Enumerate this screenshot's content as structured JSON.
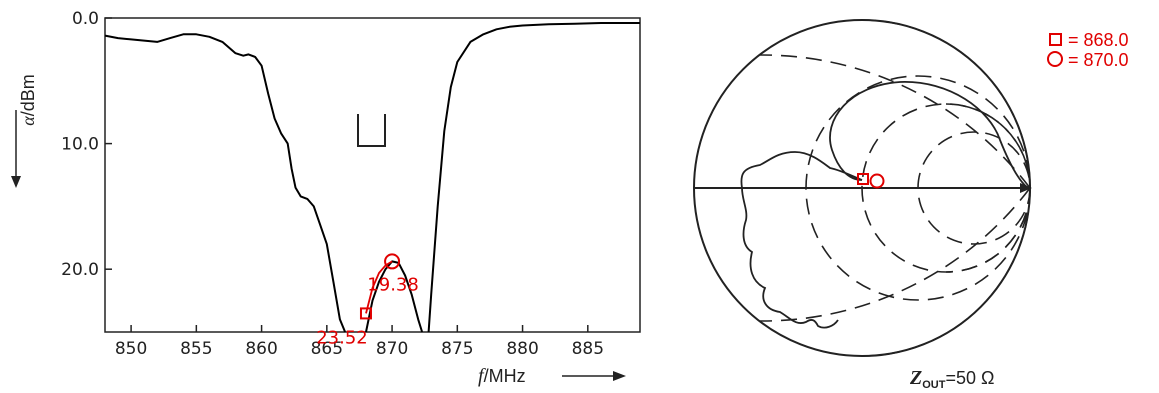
{
  "chart_data": [
    {
      "type": "line",
      "xlabel": "f",
      "xunit": "MHz",
      "ylabel": "α",
      "yunit": "dBm",
      "xlim": [
        848,
        889
      ],
      "ylim": [
        0,
        25
      ],
      "y_inverted": true,
      "x_ticks": [
        "850",
        "855",
        "860",
        "865",
        "870",
        "875",
        "880",
        "885"
      ],
      "x_tick_values": [
        850,
        855,
        860,
        865,
        870,
        875,
        880,
        885
      ],
      "y_ticks": [
        "0.0",
        "10.0",
        "20.0"
      ],
      "y_tick_values": [
        0,
        10,
        20
      ],
      "grid": false,
      "series": [
        {
          "color": "#000000",
          "x": [
            848,
            849,
            850,
            851,
            852,
            853,
            854,
            855,
            856,
            857,
            858,
            858.6,
            859,
            859.5,
            860,
            860.5,
            861,
            861.5,
            862,
            862.3,
            862.6,
            863,
            863.5,
            864,
            864.5,
            865,
            865.5,
            866,
            866.4
          ],
          "y": [
            1.4,
            1.6,
            1.7,
            1.8,
            1.9,
            1.6,
            1.3,
            1.3,
            1.5,
            1.9,
            2.8,
            3.0,
            2.9,
            3.1,
            3.8,
            6.0,
            8.0,
            9.2,
            10.0,
            12.0,
            13.5,
            14.2,
            14.4,
            15.0,
            16.5,
            18.0,
            21.0,
            24.0,
            25.0
          ]
        },
        {
          "color": "#000000",
          "x": [
            868.0,
            868.5,
            869,
            869.5,
            870,
            870.5,
            871,
            871.5,
            872,
            872.3
          ],
          "y": [
            25.0,
            22.5,
            21.0,
            20.0,
            19.38,
            19.5,
            20.5,
            22.0,
            24.0,
            25.0
          ]
        },
        {
          "color": "#000000",
          "x": [
            872.8,
            873,
            873.5,
            874,
            874.5,
            875,
            876,
            877,
            878,
            879,
            880,
            882,
            884,
            886,
            889
          ],
          "y": [
            25.0,
            22.0,
            15.0,
            9.0,
            5.5,
            3.5,
            1.9,
            1.3,
            0.9,
            0.7,
            0.6,
            0.5,
            0.45,
            0.4,
            0.4
          ]
        },
        {
          "color": "#e00000",
          "x": [
            868.0,
            868.5,
            869,
            869.5,
            870
          ],
          "y": [
            23.52,
            21.5,
            20.3,
            19.7,
            19.38
          ]
        }
      ],
      "markers": [
        {
          "symbol": "square",
          "x": 868.0,
          "y": 23.52,
          "label": "23.52",
          "color": "#e00000"
        },
        {
          "symbol": "circle",
          "x": 870.0,
          "y": 19.38,
          "label": "19.38",
          "color": "#e00000"
        }
      ]
    },
    {
      "type": "smith",
      "reference": "Z_OUT=50 Ω",
      "reference_label": "=50  Ω",
      "reference_symbol": "Z",
      "reference_subscript": "OUT",
      "legend_position": "top-right",
      "legend": [
        {
          "symbol": "square",
          "text": "= 868.0",
          "color": "#e00000"
        },
        {
          "symbol": "circle",
          "text": "= 870.0",
          "color": "#e00000"
        }
      ]
    }
  ]
}
